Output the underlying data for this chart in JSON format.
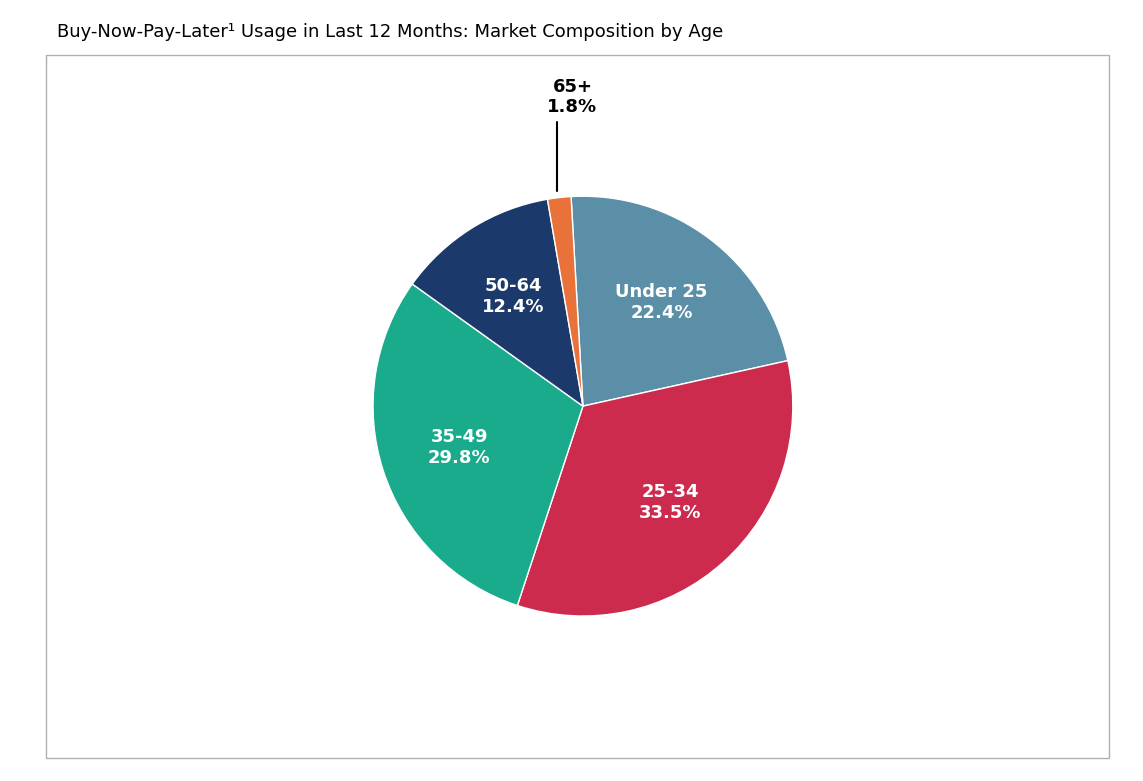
{
  "title": "Buy-Now-Pay-Later¹ Usage in Last 12 Months: Market Composition by Age",
  "labels": [
    "Under 25",
    "25-34",
    "35-49",
    "50-64",
    "65+"
  ],
  "values": [
    22.4,
    33.5,
    29.8,
    12.4,
    1.8
  ],
  "colors": [
    "#5b8fa8",
    "#cc2b4e",
    "#1aaa8c",
    "#1b3a6b",
    "#e8723a"
  ],
  "inside_labels": [
    "Under 25",
    "25-34",
    "35-49",
    "50-64"
  ],
  "outside_labels": [
    "65+"
  ],
  "text_colors_inside": [
    "white",
    "white",
    "white",
    "white"
  ],
  "background_color": "#ffffff",
  "title_fontsize": 13,
  "label_fontsize_inside": 13,
  "label_fontsize_outside": 13,
  "figsize": [
    11.43,
    7.81
  ],
  "dpi": 100,
  "startangle": 93.24
}
